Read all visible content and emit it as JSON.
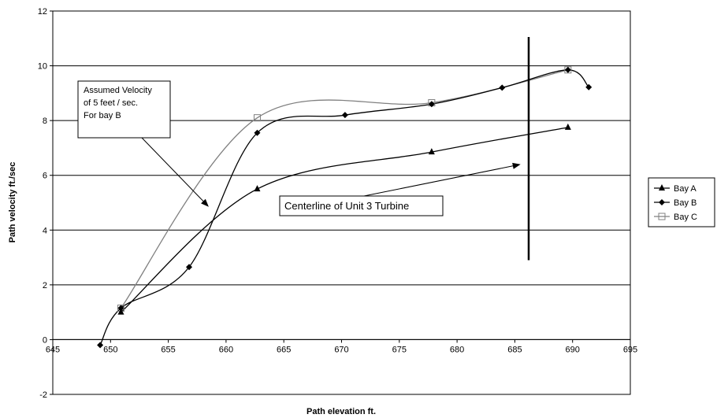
{
  "chart_data": {
    "type": "scatter",
    "title": "",
    "xlabel": "Path elevation ft.",
    "ylabel": "Path velocity ft./sec",
    "xlim": [
      645,
      695
    ],
    "ylim": [
      -2,
      12
    ],
    "x_ticks": [
      "645",
      "650",
      "655",
      "660",
      "665",
      "670",
      "675",
      "680",
      "685",
      "690",
      "695"
    ],
    "y_ticks": [
      "-2",
      "0",
      "2",
      "4",
      "6",
      "8",
      "10",
      "12"
    ],
    "grid": "horizontal",
    "legend_position": "right",
    "series": [
      {
        "name": "Bay A",
        "marker": "triangle",
        "color": "#000000",
        "smooth": true,
        "points": [
          [
            650.9,
            1.0
          ],
          [
            662.7,
            5.5
          ],
          [
            677.8,
            6.85
          ],
          [
            689.6,
            7.75
          ]
        ]
      },
      {
        "name": "Bay B",
        "marker": "diamond",
        "color": "#000000",
        "smooth": true,
        "points": [
          [
            649.1,
            -0.2
          ],
          [
            650.9,
            1.15
          ],
          [
            656.8,
            2.65
          ],
          [
            662.7,
            7.55
          ],
          [
            670.3,
            8.2
          ],
          [
            677.8,
            8.6
          ],
          [
            683.9,
            9.2
          ],
          [
            689.6,
            9.85
          ],
          [
            691.4,
            9.22
          ]
        ]
      },
      {
        "name": "Bay C",
        "marker": "square",
        "color": "#808080",
        "smooth": true,
        "points": [
          [
            650.9,
            1.15
          ],
          [
            662.7,
            8.1
          ],
          [
            677.8,
            8.65
          ],
          [
            689.6,
            9.85
          ]
        ]
      }
    ],
    "annotations": [
      {
        "lines": [
          "Assumed Velocity",
          "of 5 feet / sec.",
          "For bay B"
        ],
        "arrow_to": [
          658.5,
          4.85
        ]
      },
      {
        "lines": [
          "Centerline of Unit 3 Turbine"
        ],
        "arrow_to": [
          685.5,
          6.4
        ]
      }
    ],
    "vertical_marker_x": 686.2,
    "vertical_marker_range": [
      2.9,
      11.05
    ]
  }
}
